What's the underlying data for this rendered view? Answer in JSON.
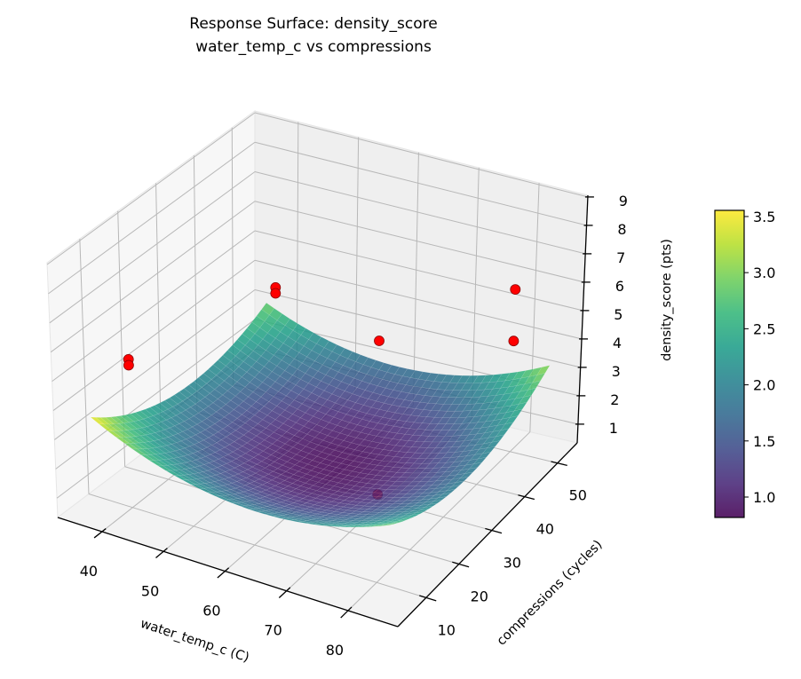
{
  "chart_data": {
    "type": "surface",
    "title": [
      "Response Surface: density_score",
      "water_temp_c vs compressions"
    ],
    "xlabel": "water_temp_c (C)",
    "ylabel": "compressions (cycles)",
    "zlabel": "density_score (pts)",
    "xlim": [
      32.8,
      88.1
    ],
    "ylim": [
      1.4,
      56.0
    ],
    "zlim": [
      0.34,
      9.06
    ],
    "xticks": [
      "40",
      "50",
      "60",
      "70",
      "80"
    ],
    "yticks": [
      "10",
      "20",
      "30",
      "40",
      "50"
    ],
    "zticks": [
      "1",
      "2",
      "3",
      "4",
      "5",
      "6",
      "7",
      "8",
      "9"
    ],
    "grid": true,
    "colormap": "viridis",
    "colorbar": {
      "range": [
        0.818,
        3.555
      ],
      "ticks": [
        "1.0",
        "1.5",
        "2.0",
        "2.5",
        "3.0",
        "3.5"
      ],
      "placement": "right"
    },
    "surface": {
      "x": [
        36,
        48,
        60,
        72,
        84
      ],
      "y": [
        6,
        18,
        30,
        42,
        54
      ],
      "z": [
        [
          3.55,
          2.51,
          2.08,
          2.24,
          3.0
        ],
        [
          2.57,
          1.58,
          1.19,
          1.4,
          2.21
        ],
        [
          2.14,
          1.19,
          0.85,
          1.11,
          1.96
        ],
        [
          2.25,
          1.35,
          1.05,
          1.36,
          2.26
        ],
        [
          2.9,
          2.05,
          1.8,
          2.15,
          3.1
        ]
      ]
    },
    "points": [
      {
        "x": 40,
        "y": 10,
        "z": 5.4
      },
      {
        "x": 40,
        "y": 10,
        "z": 5.2
      },
      {
        "x": 40,
        "y": 50,
        "z": 4.0
      },
      {
        "x": 40,
        "y": 50,
        "z": 3.8
      },
      {
        "x": 80,
        "y": 50,
        "z": 6.0
      },
      {
        "x": 80,
        "y": 50,
        "z": 4.2
      },
      {
        "x": 80,
        "y": 10,
        "z": 8.6
      },
      {
        "x": 80,
        "y": 10,
        "z": 3.35
      }
    ],
    "point_color": "#ff0000",
    "point_edge_color": "#8b0000"
  }
}
